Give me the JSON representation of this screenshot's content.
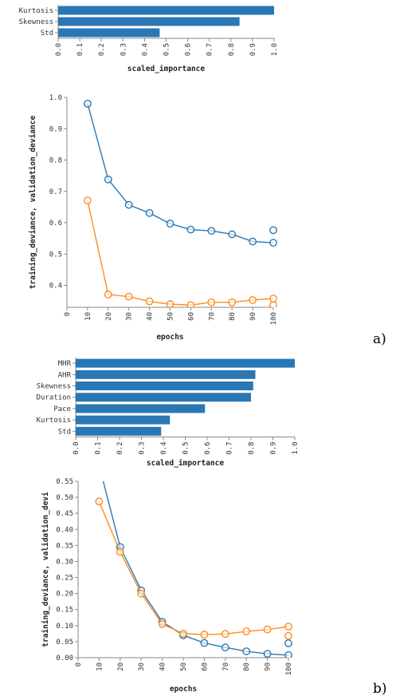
{
  "labels": {
    "a": "a)",
    "b": "b)"
  },
  "colors": {
    "blue": "#2a77b4",
    "orange": "#ff8c1a",
    "bar": "#2a77b4"
  },
  "chart_data": [
    {
      "type": "bar",
      "orientation": "horizontal",
      "categories": [
        "Kurtosis",
        "Skewness",
        "Std"
      ],
      "values": [
        1.0,
        0.84,
        0.47
      ],
      "xlabel": "scaled_importance",
      "xlim": [
        0,
        1.0
      ],
      "xticks": [
        "0.0",
        "0.1",
        "0.2",
        "0.3",
        "0.4",
        "0.5",
        "0.6",
        "0.7",
        "0.8",
        "0.9",
        "1.0"
      ]
    },
    {
      "type": "line",
      "x": [
        10,
        20,
        30,
        40,
        50,
        60,
        70,
        80,
        90,
        100
      ],
      "series": [
        {
          "values": [
            0.98,
            0.738,
            0.657,
            0.631,
            0.597,
            0.578,
            0.574,
            0.563,
            0.54,
            0.536
          ],
          "color": "#2a77b4",
          "extra_point": [
            100,
            0.576
          ]
        },
        {
          "values": [
            0.671,
            0.371,
            0.364,
            0.349,
            0.34,
            0.337,
            0.346,
            0.346,
            0.353,
            0.358
          ],
          "color": "#ff8c1a",
          "extra_point": [
            100,
            0.337
          ]
        }
      ],
      "xlabel": "epochs",
      "ylabel": "training_deviance, validation_deviance",
      "xlim": [
        0,
        100
      ],
      "ylim": [
        0.33,
        1.0
      ],
      "xticks": [
        "0",
        "10",
        "20",
        "30",
        "40",
        "50",
        "60",
        "70",
        "80",
        "90",
        "100"
      ],
      "yticks": [
        "0.4",
        "0.5",
        "0.6",
        "0.7",
        "0.8",
        "0.9",
        "1.0"
      ]
    },
    {
      "type": "bar",
      "orientation": "horizontal",
      "categories": [
        "MHR",
        "AHR",
        "Skewness",
        "Duration",
        "Pace",
        "Kurtosis",
        "Std"
      ],
      "values": [
        1.0,
        0.82,
        0.81,
        0.8,
        0.59,
        0.43,
        0.39
      ],
      "xlabel": "scaled_importance",
      "xlim": [
        0,
        1.0
      ],
      "xticks": [
        "0.0",
        "0.1",
        "0.2",
        "0.3",
        "0.4",
        "0.5",
        "0.6",
        "0.7",
        "0.8",
        "0.9",
        "1.0"
      ]
    },
    {
      "type": "line",
      "x": [
        10,
        20,
        30,
        40,
        50,
        60,
        70,
        80,
        90,
        100
      ],
      "series": [
        {
          "values": [
            0.6,
            0.345,
            0.21,
            0.112,
            0.07,
            0.046,
            0.032,
            0.02,
            0.012,
            0.008
          ],
          "color": "#2a77b4",
          "extra_point": [
            100,
            0.045
          ]
        },
        {
          "values": [
            0.487,
            0.33,
            0.2,
            0.105,
            0.075,
            0.072,
            0.074,
            0.082,
            0.088,
            0.097
          ],
          "color": "#ff8c1a",
          "extra_point": [
            100,
            0.068
          ]
        }
      ],
      "xlabel": "epochs",
      "ylabel": "training_deviance, validation_devi",
      "xlim": [
        0,
        100
      ],
      "ylim": [
        0,
        0.55
      ],
      "xticks": [
        "0",
        "10",
        "20",
        "30",
        "40",
        "50",
        "60",
        "70",
        "80",
        "90",
        "100"
      ],
      "yticks": [
        "0.00",
        "0.05",
        "0.10",
        "0.15",
        "0.20",
        "0.25",
        "0.30",
        "0.35",
        "0.40",
        "0.45",
        "0.50",
        "0.55"
      ]
    }
  ]
}
